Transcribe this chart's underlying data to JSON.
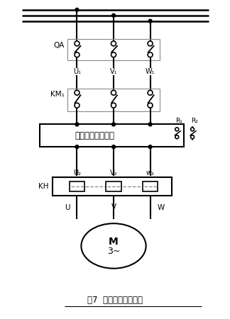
{
  "title": "图7  不带旁路的一次图",
  "bg_color": "#ffffff",
  "line_color": "#000000",
  "dashed_color": "#888888",
  "box_label": "电动机软启动装置",
  "motor_label1": "M",
  "motor_label2": "3~",
  "qa_label": "QA",
  "km_label": "KM₁",
  "kh_label": "KH",
  "u1_label": "U₁",
  "v1_label": "V₁",
  "w1_label": "W₁",
  "u2_label": "U₂",
  "v2_label": "V₂",
  "w2_label": "w₂",
  "u_label": "U",
  "v_label": "V",
  "w_label": "W",
  "r1_label": "R₁",
  "r2_label": "R₂",
  "figsize": [
    3.24,
    4.5
  ],
  "dpi": 100
}
